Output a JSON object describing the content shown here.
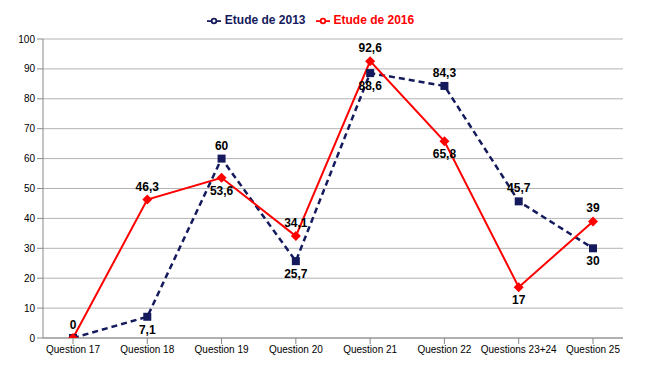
{
  "chart_data": {
    "type": "line",
    "categories": [
      "Question 17",
      "Question 18",
      "Question 19",
      "Question 20",
      "Question 21",
      "Question 22",
      "Questions 23+24",
      "Question 25"
    ],
    "series": [
      {
        "name": "Etude de 2013",
        "color": "#141a5c",
        "line_style": "dashed",
        "marker": "square",
        "values": [
          0,
          7.1,
          60,
          25.7,
          88.6,
          84.3,
          45.7,
          30
        ],
        "value_labels": [
          null,
          "7,1",
          "60",
          "25,7",
          "88,6",
          "84,3",
          "45,7",
          "30"
        ]
      },
      {
        "name": "Etude de 2016",
        "color": "#ff0000",
        "line_style": "solid",
        "marker": "diamond",
        "values": [
          0,
          46.3,
          53.6,
          34.1,
          92.6,
          65.8,
          17,
          39
        ],
        "value_labels": [
          "0",
          "46,3",
          "53,6",
          "34,1",
          "92,6",
          "65,8",
          "17",
          "39"
        ]
      }
    ],
    "ylim": [
      0,
      100
    ],
    "yticks": [
      0,
      10,
      20,
      30,
      40,
      50,
      60,
      70,
      80,
      90,
      100
    ],
    "grid": true,
    "legend": "top",
    "data_labels": true
  }
}
